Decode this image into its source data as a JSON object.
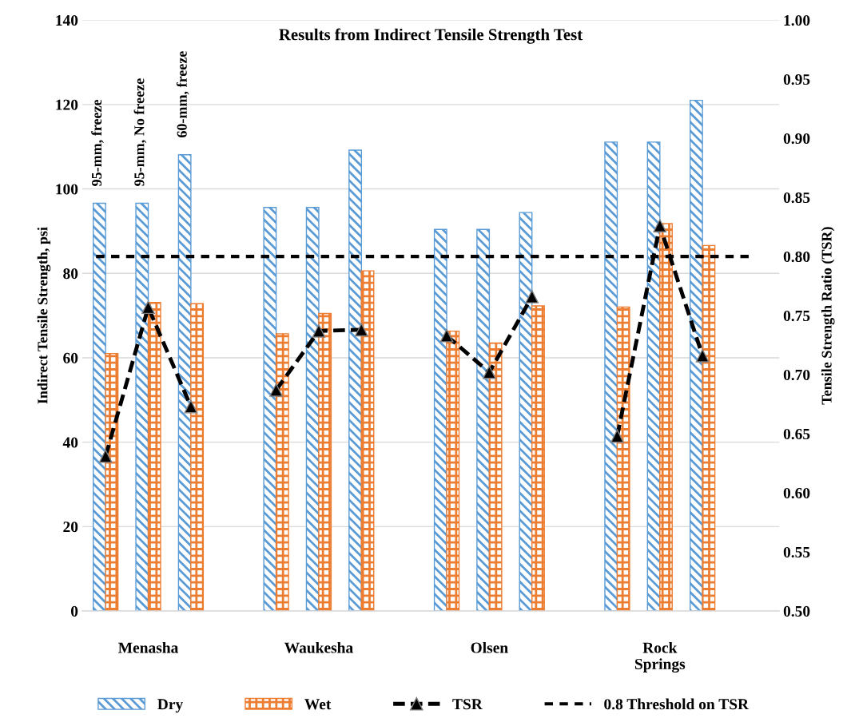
{
  "chart_data": {
    "type": "bar",
    "title": "Results from Indirect Tensile Strength Test",
    "ylabel": "Indirect Tensile Strength, psi",
    "y2label": "Tensile Strength Ratio (TSR)",
    "annotations": [
      "95-mm, freeze",
      "95-mm, No freeze",
      "60-mm, freeze"
    ],
    "categories": [
      null,
      "Menasha",
      null,
      null,
      null,
      "Waukesha",
      null,
      null,
      null,
      "Olsen",
      null,
      null,
      null,
      "Rock\nSprings",
      null
    ],
    "series": [
      {
        "name": "Dry",
        "color": "#5b9bd5",
        "values": [
          96.6,
          96.6,
          108.1,
          null,
          95.6,
          95.6,
          109.2,
          null,
          90.4,
          90.4,
          94.4,
          null,
          111.1,
          111.1,
          121.0
        ]
      },
      {
        "name": "Wet",
        "color": "#ed7d31",
        "values": [
          61.0,
          73.1,
          72.8,
          null,
          65.7,
          70.5,
          80.6,
          null,
          66.3,
          63.5,
          72.3,
          null,
          72.0,
          91.8,
          86.6
        ]
      },
      {
        "name": "TSR",
        "type": "line",
        "axis": "y2",
        "color": "#000000",
        "marker": "triangle",
        "line_style": "dashed",
        "values": [
          0.631,
          0.757,
          0.673,
          null,
          0.687,
          0.737,
          0.738,
          null,
          0.733,
          0.702,
          0.766,
          null,
          0.648,
          0.826,
          0.716
        ]
      }
    ],
    "ref_lines": [
      {
        "axis": "y2",
        "value": 0.8,
        "label": "0.8 Threshold on TSR",
        "color": "#000000",
        "line_style": "dashed"
      }
    ],
    "ylim": [
      0,
      140
    ],
    "yticks": [
      0,
      20,
      40,
      60,
      80,
      100,
      120,
      140
    ],
    "y2lim": [
      0.5,
      1.0
    ],
    "y2ticks": [
      {
        "value": 0.5,
        "label": "0.50"
      },
      {
        "value": 0.55,
        "label": "0.55"
      },
      {
        "value": 0.6,
        "label": "0.60"
      },
      {
        "value": 0.65,
        "label": "0.65"
      },
      {
        "value": 0.7,
        "label": "0.70"
      },
      {
        "value": 0.75,
        "label": "0.75"
      },
      {
        "value": 0.8,
        "label": "0.80"
      },
      {
        "value": 0.85,
        "label": "0.85"
      },
      {
        "value": 0.9,
        "label": "0.90"
      },
      {
        "value": 0.95,
        "label": "0.95"
      },
      {
        "value": 1.0,
        "label": "1.00"
      }
    ],
    "grid": "y",
    "legend": "bottom"
  }
}
